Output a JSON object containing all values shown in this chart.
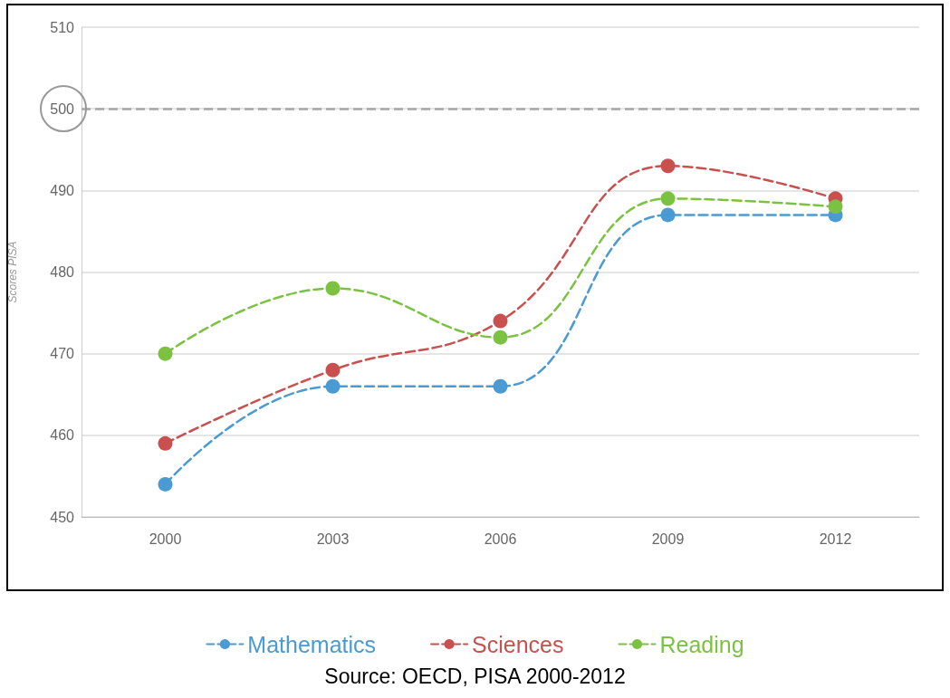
{
  "chart_data": {
    "type": "line",
    "ylabel": "Scores PISA",
    "categories": [
      "2000",
      "2003",
      "2006",
      "2009",
      "2012"
    ],
    "series": [
      {
        "name": "Mathematics",
        "color": "#4a9ad4",
        "values": [
          454,
          466,
          466,
          487,
          487
        ]
      },
      {
        "name": "Sciences",
        "color": "#c9504e",
        "values": [
          459,
          468,
          474,
          493,
          489
        ]
      },
      {
        "name": "Reading",
        "color": "#7cc242",
        "values": [
          470,
          478,
          472,
          489,
          488
        ]
      }
    ],
    "ylim": [
      450,
      510
    ],
    "yticks": [
      450,
      460,
      470,
      480,
      490,
      500,
      510
    ],
    "ref_lines": [
      {
        "axis": "y",
        "value": 500,
        "color": "#a6a6a6",
        "line_style": "dashed"
      }
    ],
    "grid": "y",
    "legend": "bottom",
    "marker": "circle",
    "line_style": "dashed",
    "annotations": [
      "Source: OECD, PISA 2000-2012"
    ]
  }
}
